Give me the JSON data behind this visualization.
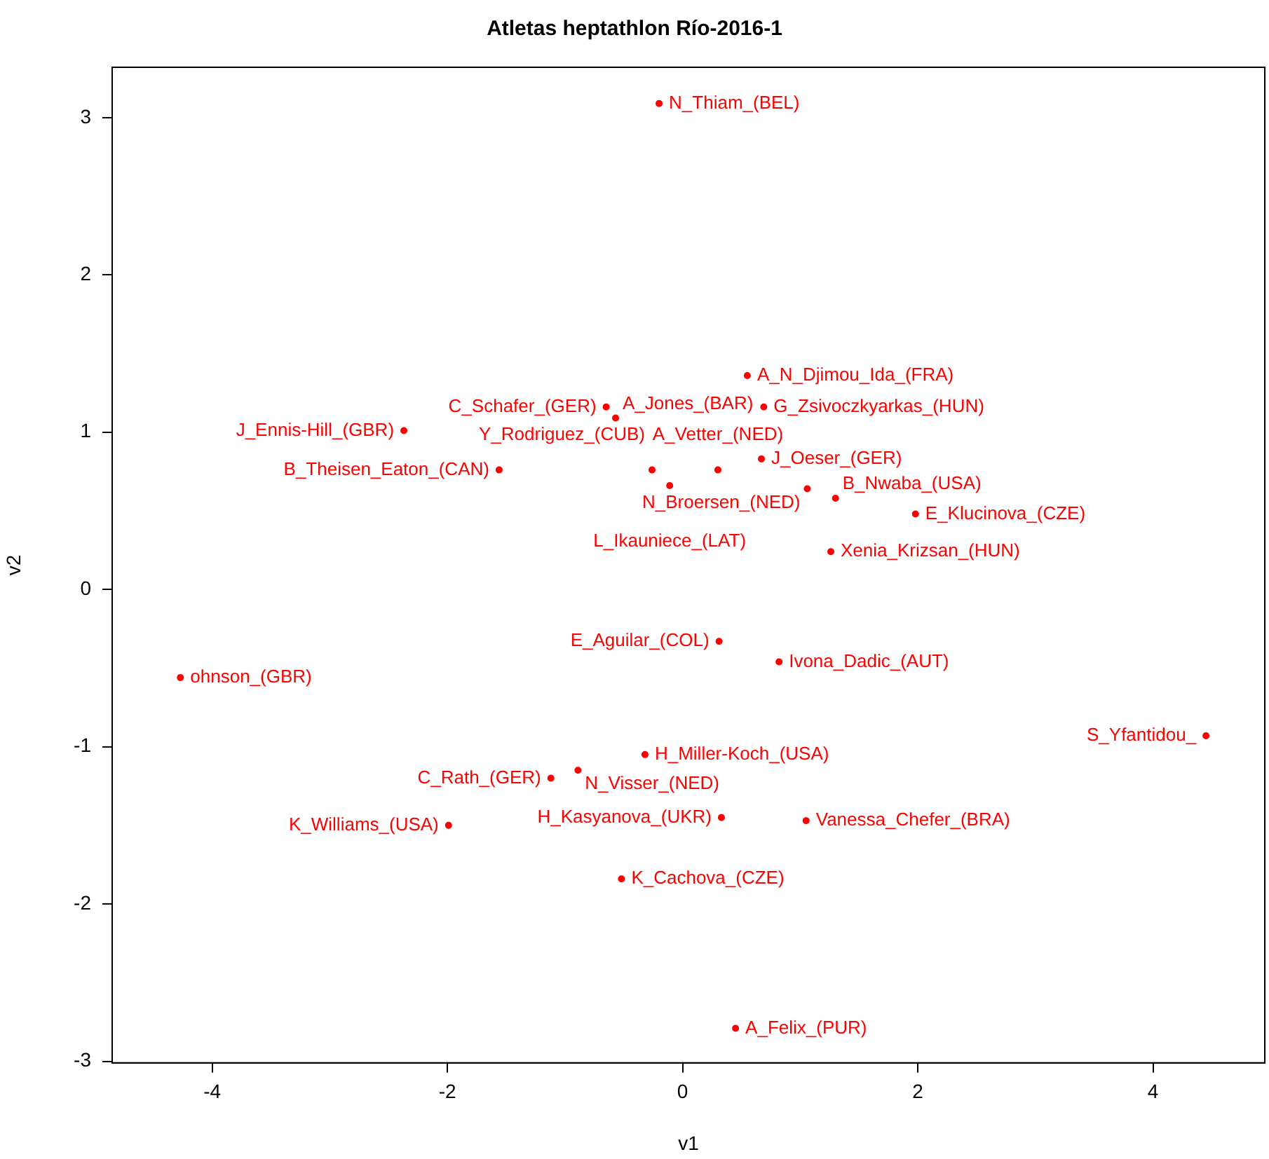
{
  "chart_data": {
    "type": "scatter",
    "title": "Atletas heptathlon Río-2016-1",
    "xlabel": "v1",
    "ylabel": "v2",
    "xlim": [
      -4.85,
      4.95
    ],
    "ylim": [
      -3.01,
      3.32
    ],
    "xticks": [
      -4,
      -2,
      0,
      2,
      4
    ],
    "yticks": [
      -3,
      -2,
      -1,
      0,
      1,
      2,
      3
    ],
    "grid": false,
    "legend": false,
    "marker": "circle",
    "series": [
      {
        "color": "#ff0000",
        "x": [
          -0.2,
          0.55,
          -0.65,
          0.69,
          -0.57,
          -2.37,
          -1.56,
          -0.26,
          0.3,
          -0.11,
          0.67,
          1.06,
          1.3,
          1.98,
          1.26,
          0.31,
          0.82,
          -4.27,
          4.45,
          -0.32,
          -0.89,
          -1.12,
          -1.99,
          0.33,
          1.05,
          -0.52,
          0.45
        ],
        "values": [
          3.09,
          1.36,
          1.16,
          1.16,
          1.09,
          1.01,
          0.76,
          0.76,
          0.76,
          0.66,
          0.83,
          0.64,
          0.58,
          0.48,
          0.24,
          -0.33,
          -0.46,
          -0.56,
          -0.93,
          -1.05,
          -1.15,
          -1.2,
          -1.5,
          -1.45,
          -1.47,
          -1.84,
          -2.79
        ],
        "value_labels": [
          "N_Thiam_(BEL)",
          "A_N_Djimou_Ida_(FRA)",
          "C_Schafer_(GER)",
          "G_Zsivoczkyarkas_(HUN)",
          "A_Jones_(BAR)",
          "J_Ennis-Hill_(GBR)",
          "B_Theisen_Eaton_(CAN)",
          "Y_Rodriguez_(CUB)",
          "A_Vetter_(NED)",
          "L_Ikauniece_(LAT)",
          "J_Oeser_(GER)",
          "N_Broersen_(NED)",
          "B_Nwaba_(USA)",
          "E_Klucinova_(CZE)",
          "Xenia_Krizsan_(HUN)",
          "E_Aguilar_(COL)",
          "Ivona_Dadic_(AUT)",
          "ohnson_(GBR)",
          "S_Yfantidou_",
          "H_Miller-Koch_(USA)",
          "N_Visser_(NED)",
          "C_Rath_(GER)",
          "K_Williams_(USA)",
          "H_Kasyanova_(UKR)",
          "Vanessa_Chefer_(BRA)",
          "K_Cachova_(CZE)",
          "A_Felix_(PUR)"
        ]
      }
    ]
  }
}
